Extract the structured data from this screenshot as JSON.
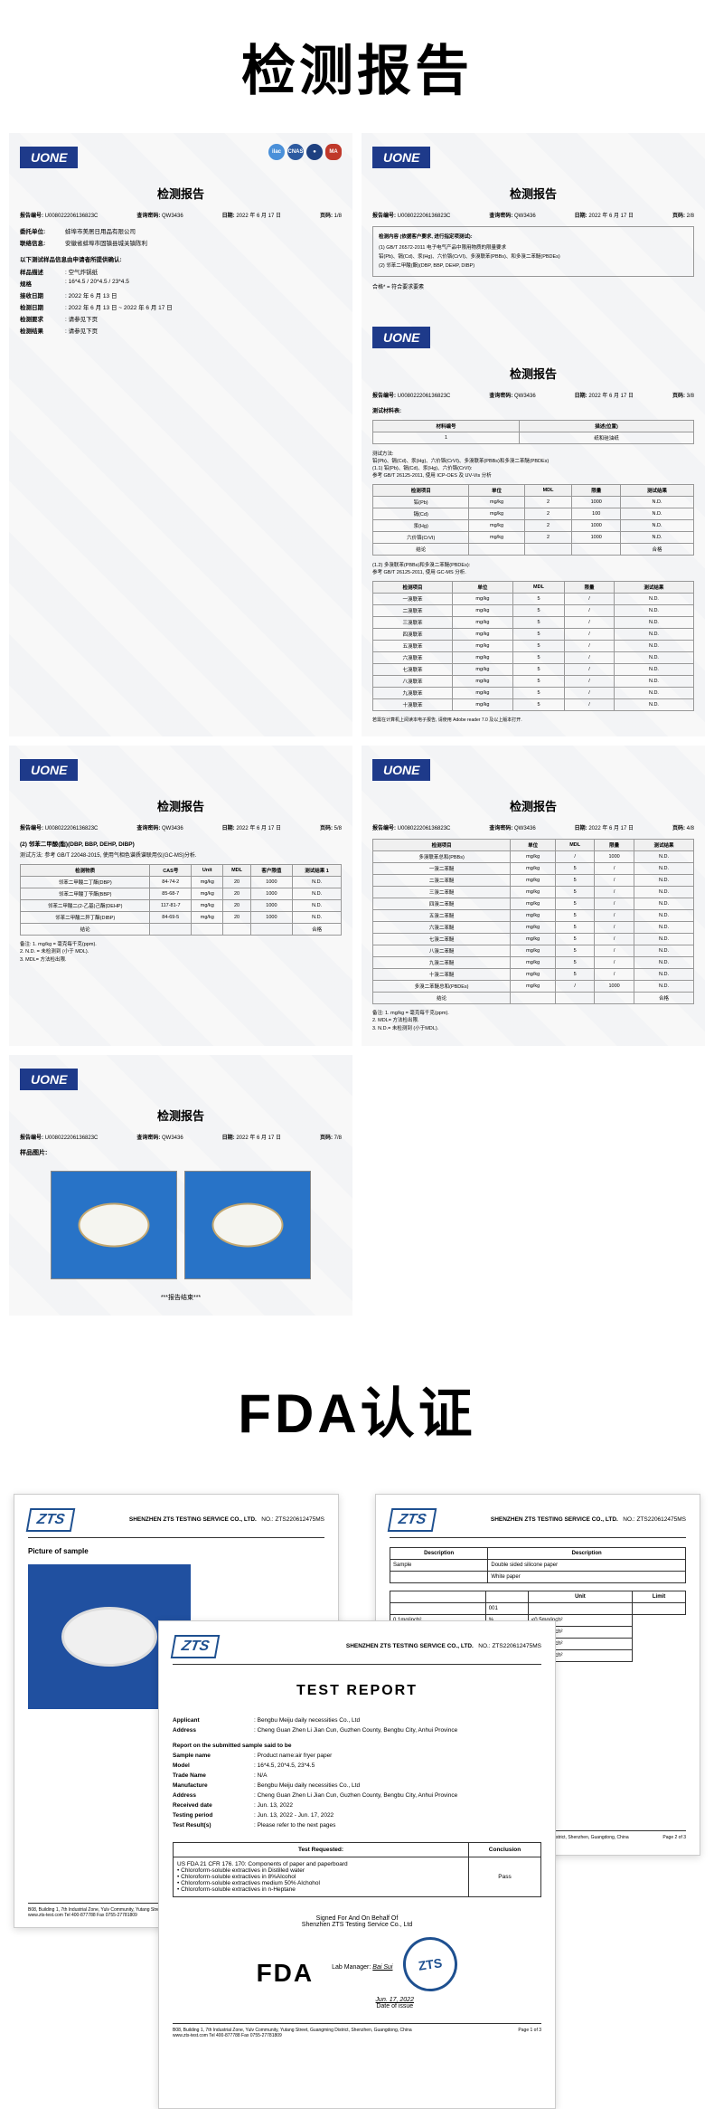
{
  "titles": {
    "inspection": "检测报告",
    "fda": "FDA认证"
  },
  "uone": "UONE",
  "report_common": {
    "title": "检测报告",
    "report_no_label": "报告编号:",
    "report_no": "U008022206136823C",
    "query_label": "查询密码:",
    "query": "QW3436",
    "date_label": "日期:",
    "date": "2022 年 6 月 17 日",
    "page_label": "页码:"
  },
  "card1": {
    "page": "1/8",
    "client_label": "委托单位:",
    "client": "蚌埠市美居日用品有限公司",
    "contact_label": "联络信息:",
    "contact": "安徽省蚌埠市固镇县城关镇陈利",
    "note": "以下测试样品信息由申请者所提供确认:",
    "rows": [
      {
        "l": "样品描述",
        "v": "空气炸锅纸"
      },
      {
        "l": "规格",
        "v": "16*4.5 / 20*4.5 / 23*4.5"
      },
      {
        "l": "接收日期",
        "v": "2022 年 6 月 13 日"
      },
      {
        "l": "检测日期",
        "v": "2022 年 6 月 13 日 ~ 2022 年 6 月 17 日"
      },
      {
        "l": "检测要求",
        "v": "请参见下页"
      },
      {
        "l": "检测结果",
        "v": "请参见下页"
      }
    ]
  },
  "card2": {
    "page": "2/8",
    "content_label": "检测内容 (依据客户要求, 进行指定项测试):",
    "tests": [
      "(1) GB/T 26572-2011 电子电气产品中限用物质的限量要求",
      "铅(Pb)、镉(Cd)、汞(Hg)、六价铬(CrVI)、多溴联苯(PBBs)、和多溴二苯醚(PBDEs)",
      "(2) 邻苯二甲酸(酯)(DBP, BBP, DEHP, DIBP)"
    ],
    "result": "合格* = 符合要求要素"
  },
  "card3": {
    "page": "5/8",
    "section": "(2) 邻苯二甲酸(酯)(DBP, BBP, DEHP, DIBP)",
    "method": "测试方法: 参考 GB/T 22048-2015, 使用气相色谱质谱联用仪(GC-MS)分析.",
    "headers": [
      "检测物质",
      "CAS号",
      "Unit",
      "MDL",
      "客户限值",
      "测试结果\n1"
    ],
    "rows": [
      [
        "邻苯二甲酸二丁酯(DBP)",
        "84-74-2",
        "mg/kg",
        "20",
        "1000",
        "N.D."
      ],
      [
        "邻苯二甲酸丁苄酯(BBP)",
        "85-68-7",
        "mg/kg",
        "20",
        "1000",
        "N.D."
      ],
      [
        "邻苯二甲酸二(2-乙基)己酯(DEHP)",
        "117-81-7",
        "mg/kg",
        "20",
        "1000",
        "N.D."
      ],
      [
        "邻苯二甲酸二异丁酯(DIBP)",
        "84-69-5",
        "mg/kg",
        "20",
        "1000",
        "N.D."
      ],
      [
        "结论",
        "",
        "",
        "",
        "",
        "合格"
      ]
    ],
    "notes": "备注:  1.  mg/kg = 毫克每千克(ppm).\n        2.  N.D. = 未检测到 (小于 MDL).\n        3.  MDL= 方法检出限."
  },
  "card4": {
    "page": "3/8",
    "mat_label": "测试材料表:",
    "mat_headers": [
      "材料编号",
      "描述(位置)"
    ],
    "mat_row": [
      "1",
      "纸和硅油纸"
    ],
    "method1": "测试方法:\n铅(Pb)、镉(Cd)、汞(Hg)、六价铬(CrVI)、多溴联苯(PBBs)和多溴二苯醚(PBDEs)\n(1.1) 铅(Pb)、镉(Cd)、汞(Hg)、六价铬(CrVI):\n参考 GB/T 26125-2011, 使用 ICP-OES 及 UV-Vis 分析",
    "t1_headers": [
      "检测项目",
      "单位",
      "MDL",
      "限量",
      "测试结果"
    ],
    "t1_rows": [
      [
        "铅(Pb)",
        "mg/kg",
        "2",
        "1000",
        "N.D."
      ],
      [
        "镉(Cd)",
        "mg/kg",
        "2",
        "100",
        "N.D."
      ],
      [
        "汞(Hg)",
        "mg/kg",
        "2",
        "1000",
        "N.D."
      ],
      [
        "六价铬(CrVI)",
        "mg/kg",
        "2",
        "1000",
        "N.D."
      ],
      [
        "结论",
        "",
        "",
        "",
        "合格"
      ]
    ],
    "method2": "(1.2) 多溴联苯(PBBs)和多溴二苯醚(PBDEs):\n参考 GB/T 26125-2011, 使用 GC-MS 分析.",
    "t2_headers": [
      "检测项目",
      "单位",
      "MDL",
      "限量",
      "测试结果"
    ],
    "t2_rows": [
      [
        "一溴联苯",
        "mg/kg",
        "5",
        "/",
        "N.D."
      ],
      [
        "二溴联苯",
        "mg/kg",
        "5",
        "/",
        "N.D."
      ],
      [
        "三溴联苯",
        "mg/kg",
        "5",
        "/",
        "N.D."
      ],
      [
        "四溴联苯",
        "mg/kg",
        "5",
        "/",
        "N.D."
      ],
      [
        "五溴联苯",
        "mg/kg",
        "5",
        "/",
        "N.D."
      ],
      [
        "六溴联苯",
        "mg/kg",
        "5",
        "/",
        "N.D."
      ],
      [
        "七溴联苯",
        "mg/kg",
        "5",
        "/",
        "N.D."
      ],
      [
        "八溴联苯",
        "mg/kg",
        "5",
        "/",
        "N.D."
      ],
      [
        "九溴联苯",
        "mg/kg",
        "5",
        "/",
        "N.D."
      ],
      [
        "十溴联苯",
        "mg/kg",
        "5",
        "/",
        "N.D."
      ]
    ],
    "footnote": "若需在计算机上阅读本电子报告, 请使用 Adobe reader 7.0 及以上版本打开."
  },
  "card5": {
    "page": "7/8",
    "label": "样品图片:",
    "end": "***报告结束***"
  },
  "card6": {
    "page": "4/8",
    "headers": [
      "检测项目",
      "单位",
      "MDL",
      "限量",
      "测试结果"
    ],
    "rows": [
      [
        "多溴联苯总和(PBBs)",
        "mg/kg",
        "/",
        "1000",
        "N.D."
      ],
      [
        "一溴二苯醚",
        "mg/kg",
        "5",
        "/",
        "N.D."
      ],
      [
        "二溴二苯醚",
        "mg/kg",
        "5",
        "/",
        "N.D."
      ],
      [
        "三溴二苯醚",
        "mg/kg",
        "5",
        "/",
        "N.D."
      ],
      [
        "四溴二苯醚",
        "mg/kg",
        "5",
        "/",
        "N.D."
      ],
      [
        "五溴二苯醚",
        "mg/kg",
        "5",
        "/",
        "N.D."
      ],
      [
        "六溴二苯醚",
        "mg/kg",
        "5",
        "/",
        "N.D."
      ],
      [
        "七溴二苯醚",
        "mg/kg",
        "5",
        "/",
        "N.D."
      ],
      [
        "八溴二苯醚",
        "mg/kg",
        "5",
        "/",
        "N.D."
      ],
      [
        "九溴二苯醚",
        "mg/kg",
        "5",
        "/",
        "N.D."
      ],
      [
        "十溴二苯醚",
        "mg/kg",
        "5",
        "/",
        "N.D."
      ],
      [
        "多溴二苯醚总和(PBDEs)",
        "mg/kg",
        "/",
        "1000",
        "N.D."
      ],
      [
        "结论",
        "",
        "",
        "",
        "合格"
      ]
    ],
    "notes": "备注:  1.  mg/kg = 毫克每千克(ppm).\n        2.  MDL= 方法检出限.\n        3.  N.D.= 未检测到 (小于MDL)."
  },
  "zts": {
    "logo": "ZTS",
    "company": "SHENZHEN ZTS TESTING SERVICE CO., LTD.",
    "no_label": "NO.:",
    "no": "ZTS220612475MS"
  },
  "fda_left": {
    "pic_label": "Picture of sample",
    "footer": "B08, Building 1, 7th Industrial Zone, Yulv Community, Yutang Street, Guangming District, Shenzhen, Guangdong, China\nwww.zts-test.com   Tel 400-877788   Fax 0755-27781809",
    "page": "Page 3 of 3"
  },
  "fda_right": {
    "desc_headers": [
      "Description",
      "Description"
    ],
    "desc_rows": [
      [
        "Sample",
        "Double sided silicone paper"
      ],
      [
        "",
        "White paper"
      ]
    ],
    "limit_headers": [
      "",
      "",
      "Unit",
      "Limit"
    ],
    "limit_rows": [
      [
        "",
        "001",
        "",
        ""
      ],
      [
        "0.1mg/inch²",
        "%",
        "<0.5mg/inch²"
      ],
      [
        "0.1mg/inch²",
        "%",
        "<0.5mg/inch²"
      ],
      [
        "0.1mg/inch²",
        "%",
        "<0.5mg/inch²"
      ],
      [
        "0.1mg/inch²",
        "%",
        "<0.5mg/inch²"
      ]
    ],
    "page": "Page 2 of 3"
  },
  "fda_center": {
    "title": "TEST REPORT",
    "info": [
      {
        "l": "Applicant",
        "v": "Bengbu Meiju daily necessities Co., Ltd"
      },
      {
        "l": "Address",
        "v": "Cheng Guan Zhen Li Jian Cun, Guzhen County, Bengbu City, Anhui Province"
      }
    ],
    "sub": "Report on the submitted sample said to be",
    "info2": [
      {
        "l": "Sample name",
        "v": "Product name:air fryer paper"
      },
      {
        "l": "Model",
        "v": "16*4.5, 20*4.5, 23*4.5"
      },
      {
        "l": "Trade Name",
        "v": "N/A"
      },
      {
        "l": "Manufacture",
        "v": "Bengbu Meiju daily necessities Co., Ltd"
      },
      {
        "l": "Address",
        "v": "Cheng Guan Zhen Li Jian Cun, Guzhen County, Bengbu City, Anhui Province"
      },
      {
        "l": "Received date",
        "v": "Jun. 13, 2022"
      },
      {
        "l": "Testing period",
        "v": "Jun. 13, 2022 - Jun. 17, 2022"
      },
      {
        "l": "Test Result(s)",
        "v": "Please refer to the next pages"
      }
    ],
    "conclusion_headers": [
      "Test Requested:",
      "Conclusion"
    ],
    "conclusion_text": "US FDA 21 CFR 176. 170: Components of paper and paperboard\n• Chloroform-soluble extractives in Distilled water\n• Chloroform-soluble extractives in 8%Alcohol\n• Chloroform-soluble extractives medium 50% Alchohol\n• Chloroform-soluble extractives in n-Heptane",
    "conclusion_result": "Pass",
    "signed": "Signed For And On Behalf Of",
    "signed_co": "Shenzhen ZTS Testing Service Co., Ltd",
    "lab_mgr": "Lab Manager:",
    "lab_name": "Bai Sui",
    "date_issue": "Date of issue",
    "date_val": "Jun. 17, 2022",
    "fda_logo": "FDA",
    "page": "Page 1 of 3"
  }
}
